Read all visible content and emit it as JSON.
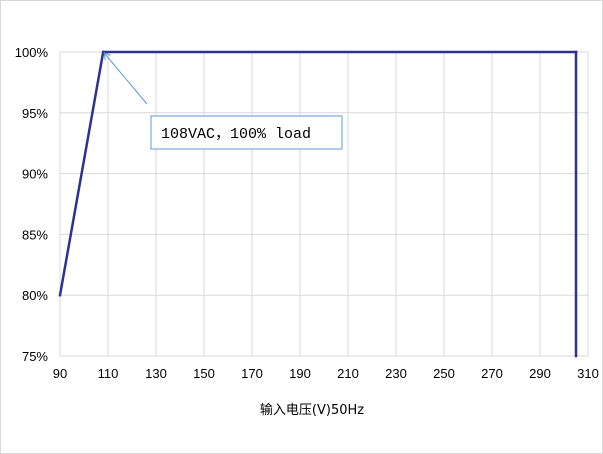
{
  "chart_data": {
    "type": "line",
    "title": "",
    "xlabel": "输入电压(V)50Hz",
    "ylabel": "",
    "xlim": [
      90,
      310
    ],
    "ylim": [
      75,
      100
    ],
    "x_ticks": [
      90,
      110,
      130,
      150,
      170,
      190,
      210,
      230,
      250,
      270,
      290,
      310
    ],
    "y_ticks": [
      75,
      80,
      85,
      90,
      95,
      100
    ],
    "y_tick_labels": [
      "75%",
      "80%",
      "85%",
      "90%",
      "95%",
      "100%"
    ],
    "grid": true,
    "legend": "none",
    "series": [
      {
        "color": "#2e3192",
        "points": [
          {
            "x": 90,
            "y": 80
          },
          {
            "x": 108,
            "y": 100
          },
          {
            "x": 305,
            "y": 100
          },
          {
            "x": 305,
            "y": 75
          }
        ]
      }
    ],
    "annotations": [
      {
        "text": "108VAC，100% load",
        "point": {
          "x": 108,
          "y": 100
        }
      }
    ]
  },
  "colors": {
    "series": "#2e3192",
    "grid": "#d9d9d9",
    "callout_border": "#5b9bd5",
    "callout_arrow": "#5b9bd5"
  }
}
